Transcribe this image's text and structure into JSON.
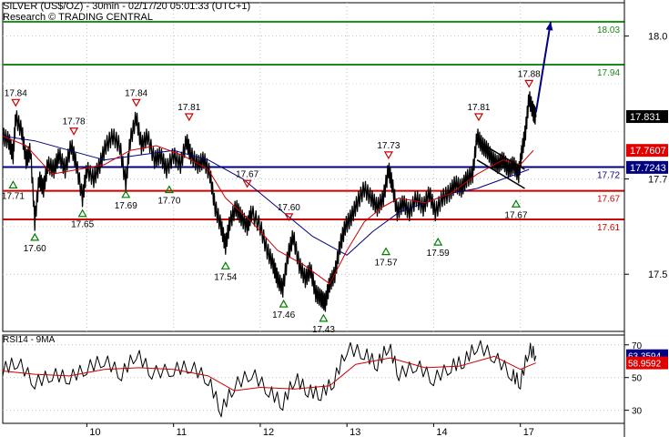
{
  "header": {
    "line1": "SILVER (US$/OZ) - 30min - 02/17/20 05:01:33 (UTC+1)",
    "line2": "Research © TRADING CENTRAL"
  },
  "rsi_title": "RSI14 - 9MA",
  "chart_data": [
    {
      "type": "line",
      "title": "SILVER (US$/OZ) - 30min",
      "ylim": [
        17.38,
        18.07
      ],
      "y_ticks": [
        "18.0",
        "17.7",
        "17.5"
      ],
      "y_tick_values": [
        18.0,
        17.7,
        17.5
      ],
      "x_ticks": [
        "10",
        "11",
        "12",
        "13",
        "14",
        "17"
      ],
      "x_tick_positions": [
        1,
        2,
        3,
        4,
        5,
        6
      ],
      "xlim": [
        0.03,
        7.2
      ],
      "levels": [
        {
          "label": "18.03",
          "value": 18.03,
          "color": "#1a8a1a"
        },
        {
          "label": "17.94",
          "value": 17.94,
          "color": "#1a8a1a"
        },
        {
          "label": "17.72",
          "value": 17.725,
          "color": "#000080"
        },
        {
          "label": "17.67",
          "value": 17.675,
          "color": "#cc0000"
        },
        {
          "label": "17.61",
          "value": 17.615,
          "color": "#cc0000"
        }
      ],
      "price_badges": [
        {
          "label": "17.831",
          "value": 17.831,
          "bg": "#000000",
          "fg": "#ffffff"
        },
        {
          "label": "17.7607",
          "value": 17.76,
          "bg": "#e00000",
          "fg": "#ffffff"
        },
        {
          "label": "17.7243",
          "value": 17.7243,
          "bg": "#000080",
          "fg": "#ffffff"
        }
      ],
      "pivot_labels": [
        {
          "text": "17.84",
          "x": 0.18,
          "y": 17.84,
          "kind": "high"
        },
        {
          "text": "17.78",
          "x": 0.85,
          "y": 17.78,
          "kind": "high"
        },
        {
          "text": "17.84",
          "x": 1.57,
          "y": 17.84,
          "kind": "high"
        },
        {
          "text": "17.81",
          "x": 2.18,
          "y": 17.81,
          "kind": "high"
        },
        {
          "text": "17.67",
          "x": 2.85,
          "y": 17.67,
          "kind": "high"
        },
        {
          "text": "17.60",
          "x": 3.33,
          "y": 17.6,
          "kind": "high"
        },
        {
          "text": "17.73",
          "x": 4.48,
          "y": 17.73,
          "kind": "high"
        },
        {
          "text": "17.81",
          "x": 5.52,
          "y": 17.81,
          "kind": "high"
        },
        {
          "text": "17.88",
          "x": 6.1,
          "y": 17.88,
          "kind": "high"
        },
        {
          "text": "17.71",
          "x": 0.15,
          "y": 17.71,
          "kind": "low"
        },
        {
          "text": "17.60",
          "x": 0.4,
          "y": 17.6,
          "kind": "low"
        },
        {
          "text": "17.65",
          "x": 0.95,
          "y": 17.65,
          "kind": "low"
        },
        {
          "text": "17.69",
          "x": 1.45,
          "y": 17.69,
          "kind": "low"
        },
        {
          "text": "17.70",
          "x": 1.95,
          "y": 17.7,
          "kind": "low"
        },
        {
          "text": "17.54",
          "x": 2.6,
          "y": 17.54,
          "kind": "low"
        },
        {
          "text": "17.46",
          "x": 3.27,
          "y": 17.46,
          "kind": "low"
        },
        {
          "text": "17.43",
          "x": 3.73,
          "y": 17.43,
          "kind": "low"
        },
        {
          "text": "17.57",
          "x": 4.45,
          "y": 17.57,
          "kind": "low"
        },
        {
          "text": "17.59",
          "x": 5.05,
          "y": 17.59,
          "kind": "low"
        },
        {
          "text": "17.67",
          "x": 5.95,
          "y": 17.67,
          "kind": "low"
        }
      ],
      "price_path": [
        [
          0.03,
          17.79
        ],
        [
          0.1,
          17.78
        ],
        [
          0.15,
          17.75
        ],
        [
          0.18,
          17.83
        ],
        [
          0.25,
          17.8
        ],
        [
          0.3,
          17.74
        ],
        [
          0.35,
          17.76
        ],
        [
          0.4,
          17.61
        ],
        [
          0.45,
          17.7
        ],
        [
          0.5,
          17.68
        ],
        [
          0.55,
          17.73
        ],
        [
          0.62,
          17.72
        ],
        [
          0.68,
          17.75
        ],
        [
          0.75,
          17.72
        ],
        [
          0.82,
          17.77
        ],
        [
          0.88,
          17.73
        ],
        [
          0.95,
          17.66
        ],
        [
          1.0,
          17.72
        ],
        [
          1.08,
          17.7
        ],
        [
          1.15,
          17.73
        ],
        [
          1.22,
          17.77
        ],
        [
          1.3,
          17.79
        ],
        [
          1.38,
          17.77
        ],
        [
          1.45,
          17.69
        ],
        [
          1.5,
          17.78
        ],
        [
          1.57,
          17.83
        ],
        [
          1.63,
          17.77
        ],
        [
          1.7,
          17.79
        ],
        [
          1.78,
          17.74
        ],
        [
          1.85,
          17.75
        ],
        [
          1.92,
          17.72
        ],
        [
          2.0,
          17.75
        ],
        [
          2.08,
          17.73
        ],
        [
          2.15,
          17.78
        ],
        [
          2.2,
          17.75
        ],
        [
          2.28,
          17.73
        ],
        [
          2.35,
          17.74
        ],
        [
          2.42,
          17.71
        ],
        [
          2.48,
          17.64
        ],
        [
          2.55,
          17.6
        ],
        [
          2.6,
          17.56
        ],
        [
          2.65,
          17.61
        ],
        [
          2.72,
          17.64
        ],
        [
          2.78,
          17.62
        ],
        [
          2.85,
          17.6
        ],
        [
          2.9,
          17.63
        ],
        [
          3.0,
          17.6
        ],
        [
          3.08,
          17.55
        ],
        [
          3.15,
          17.52
        ],
        [
          3.2,
          17.49
        ],
        [
          3.26,
          17.47
        ],
        [
          3.32,
          17.54
        ],
        [
          3.38,
          17.58
        ],
        [
          3.45,
          17.52
        ],
        [
          3.52,
          17.49
        ],
        [
          3.58,
          17.51
        ],
        [
          3.64,
          17.46
        ],
        [
          3.7,
          17.45
        ],
        [
          3.75,
          17.44
        ],
        [
          3.8,
          17.48
        ],
        [
          3.86,
          17.5
        ],
        [
          3.92,
          17.56
        ],
        [
          3.98,
          17.6
        ],
        [
          4.05,
          17.62
        ],
        [
          4.12,
          17.65
        ],
        [
          4.2,
          17.68
        ],
        [
          4.28,
          17.66
        ],
        [
          4.35,
          17.64
        ],
        [
          4.42,
          17.66
        ],
        [
          4.48,
          17.72
        ],
        [
          4.52,
          17.69
        ],
        [
          4.58,
          17.63
        ],
        [
          4.65,
          17.65
        ],
        [
          4.72,
          17.63
        ],
        [
          4.8,
          17.66
        ],
        [
          4.88,
          17.64
        ],
        [
          4.95,
          17.67
        ],
        [
          5.02,
          17.63
        ],
        [
          5.1,
          17.66
        ],
        [
          5.18,
          17.67
        ],
        [
          5.25,
          17.69
        ],
        [
          5.32,
          17.68
        ],
        [
          5.38,
          17.7
        ],
        [
          5.45,
          17.71
        ],
        [
          5.5,
          17.79
        ],
        [
          5.56,
          17.77
        ],
        [
          5.62,
          17.76
        ],
        [
          5.68,
          17.74
        ],
        [
          5.74,
          17.73
        ],
        [
          5.8,
          17.74
        ],
        [
          5.86,
          17.72
        ],
        [
          5.92,
          17.73
        ],
        [
          5.98,
          17.71
        ],
        [
          6.02,
          17.76
        ],
        [
          6.06,
          17.8
        ],
        [
          6.1,
          17.87
        ],
        [
          6.15,
          17.84
        ],
        [
          6.18,
          17.83
        ]
      ],
      "ma_fast": [
        [
          0.03,
          17.79
        ],
        [
          0.3,
          17.77
        ],
        [
          0.6,
          17.71
        ],
        [
          0.9,
          17.72
        ],
        [
          1.2,
          17.73
        ],
        [
          1.5,
          17.76
        ],
        [
          1.8,
          17.77
        ],
        [
          2.1,
          17.75
        ],
        [
          2.4,
          17.72
        ],
        [
          2.6,
          17.66
        ],
        [
          2.9,
          17.61
        ],
        [
          3.2,
          17.55
        ],
        [
          3.5,
          17.52
        ],
        [
          3.8,
          17.48
        ],
        [
          4.0,
          17.55
        ],
        [
          4.2,
          17.61
        ],
        [
          4.4,
          17.64
        ],
        [
          4.6,
          17.66
        ],
        [
          4.9,
          17.65
        ],
        [
          5.2,
          17.67
        ],
        [
          5.5,
          17.71
        ],
        [
          5.8,
          17.74
        ],
        [
          6.0,
          17.73
        ],
        [
          6.15,
          17.76
        ]
      ],
      "ma_slow": [
        [
          0.03,
          17.79
        ],
        [
          0.4,
          17.78
        ],
        [
          0.8,
          17.76
        ],
        [
          1.2,
          17.74
        ],
        [
          1.6,
          17.75
        ],
        [
          2.0,
          17.76
        ],
        [
          2.4,
          17.74
        ],
        [
          2.8,
          17.7
        ],
        [
          3.2,
          17.64
        ],
        [
          3.6,
          17.58
        ],
        [
          4.0,
          17.54
        ],
        [
          4.3,
          17.59
        ],
        [
          4.6,
          17.63
        ],
        [
          4.9,
          17.65
        ],
        [
          5.2,
          17.67
        ],
        [
          5.5,
          17.68
        ],
        [
          5.8,
          17.7
        ],
        [
          6.1,
          17.72
        ]
      ],
      "flag_lines": [
        [
          [
            5.5,
            17.78
          ],
          [
            6.05,
            17.72
          ]
        ],
        [
          [
            5.5,
            17.74
          ],
          [
            6.05,
            17.68
          ]
        ]
      ],
      "projection_arrow": [
        [
          6.18,
          17.84
        ],
        [
          6.35,
          18.03
        ]
      ]
    },
    {
      "type": "line",
      "title": "RSI14 - 9MA",
      "ylim": [
        22,
        76
      ],
      "y_ticks": [
        "70",
        "50",
        "30"
      ],
      "y_tick_values": [
        70,
        50,
        30
      ],
      "badges": [
        {
          "label": "63.3594",
          "value": 63.36,
          "bg": "#000080",
          "fg": "#ffffff"
        },
        {
          "label": "58.9592",
          "value": 58.96,
          "bg": "#e00000",
          "fg": "#ffffff"
        }
      ],
      "rsi": [
        [
          0.03,
          55
        ],
        [
          0.2,
          60
        ],
        [
          0.4,
          47
        ],
        [
          0.6,
          52
        ],
        [
          0.8,
          50
        ],
        [
          1.0,
          56
        ],
        [
          1.2,
          61
        ],
        [
          1.4,
          52
        ],
        [
          1.57,
          65
        ],
        [
          1.75,
          53
        ],
        [
          2.0,
          55
        ],
        [
          2.2,
          57
        ],
        [
          2.4,
          49
        ],
        [
          2.55,
          30
        ],
        [
          2.7,
          45
        ],
        [
          2.9,
          53
        ],
        [
          3.1,
          42
        ],
        [
          3.26,
          34
        ],
        [
          3.4,
          50
        ],
        [
          3.55,
          42
        ],
        [
          3.7,
          40
        ],
        [
          3.85,
          48
        ],
        [
          4.0,
          68
        ],
        [
          4.2,
          65
        ],
        [
          4.35,
          58
        ],
        [
          4.48,
          70
        ],
        [
          4.6,
          52
        ],
        [
          4.8,
          58
        ],
        [
          5.0,
          49
        ],
        [
          5.2,
          57
        ],
        [
          5.35,
          60
        ],
        [
          5.5,
          70
        ],
        [
          5.7,
          63
        ],
        [
          5.9,
          52
        ],
        [
          6.0,
          47
        ],
        [
          6.1,
          68
        ],
        [
          6.18,
          63.36
        ]
      ],
      "rsi_ma": [
        [
          0.03,
          54
        ],
        [
          0.4,
          52
        ],
        [
          0.8,
          51
        ],
        [
          1.2,
          55
        ],
        [
          1.6,
          56
        ],
        [
          2.0,
          55
        ],
        [
          2.4,
          51
        ],
        [
          2.7,
          42
        ],
        [
          3.0,
          44
        ],
        [
          3.4,
          43
        ],
        [
          3.8,
          45
        ],
        [
          4.1,
          58
        ],
        [
          4.5,
          62
        ],
        [
          4.9,
          56
        ],
        [
          5.3,
          57
        ],
        [
          5.7,
          63
        ],
        [
          6.0,
          55
        ],
        [
          6.18,
          58.96
        ]
      ]
    }
  ]
}
